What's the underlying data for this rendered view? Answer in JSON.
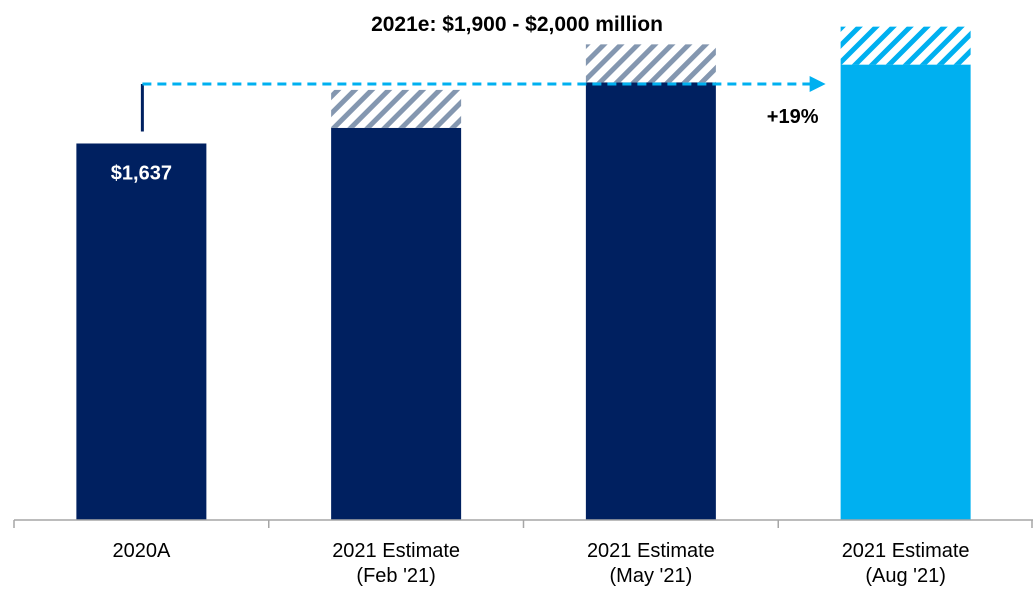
{
  "chart_data": {
    "type": "bar",
    "title": "2021e: $1,900 - $2,000 million",
    "xlabel": "",
    "ylabel": "",
    "ylim": [
      0,
      2000
    ],
    "grid": false,
    "legend": "none",
    "categories": [
      [
        "2020A"
      ],
      [
        "2021 Estimate",
        "(Feb '21)"
      ],
      [
        "2021 Estimate",
        "(May '21)"
      ],
      [
        "2021 Estimate",
        "(Aug '21)"
      ]
    ],
    "series": [
      {
        "values": [
          1637,
          1705,
          1903,
          1980
        ]
      },
      {
        "values": [
          0,
          165,
          165,
          165
        ]
      }
    ],
    "data_labels": [
      "$1,637",
      "",
      "",
      ""
    ],
    "annotation": "+19%",
    "colors": {
      "navy": "#002060",
      "cyan": "#00B0F0",
      "hatch_grey": "#8497B0",
      "hatch_cyan": "#00B0F0",
      "arrow": "#00B0F0",
      "axis": "#A6A6A6",
      "label_light": "#ffffff"
    }
  }
}
